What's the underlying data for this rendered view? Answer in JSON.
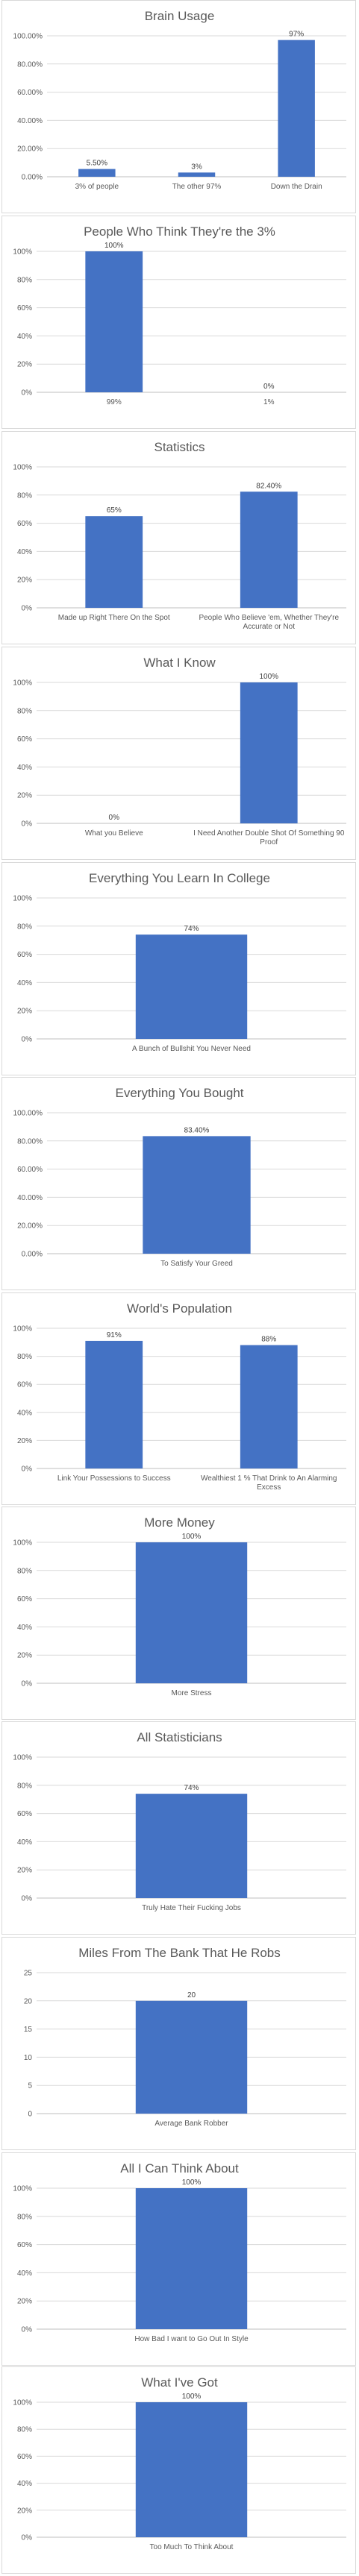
{
  "chart_data": [
    {
      "type": "bar",
      "title": "Brain Usage",
      "categories": [
        "3% of people",
        "The other 97%",
        "Down the Drain"
      ],
      "values": [
        5.5,
        3,
        97
      ],
      "data_labels": [
        "5.50%",
        "3%",
        "97%"
      ],
      "ylim": [
        0,
        100
      ],
      "yticks": [
        "0.00%",
        "20.00%",
        "40.00%",
        "60.00%",
        "80.00%",
        "100.00%"
      ],
      "grid": true,
      "legend": "none"
    },
    {
      "type": "bar",
      "title": "People Who Think They're the 3%",
      "categories": [
        "99%",
        "1%"
      ],
      "values": [
        100,
        0
      ],
      "data_labels": [
        "100%",
        "0%"
      ],
      "ylim": [
        0,
        100
      ],
      "yticks": [
        "0%",
        "20%",
        "40%",
        "60%",
        "80%",
        "100%"
      ],
      "grid": true,
      "legend": "none"
    },
    {
      "type": "bar",
      "title": "Statistics",
      "categories": [
        "Made up Right There On the Spot",
        "People Who Believe 'em, Whether They're Accurate or Not"
      ],
      "values": [
        65,
        82.4
      ],
      "data_labels": [
        "65%",
        "82.40%"
      ],
      "ylim": [
        0,
        100
      ],
      "yticks": [
        "0%",
        "20%",
        "40%",
        "60%",
        "80%",
        "100%"
      ],
      "grid": true,
      "legend": "none"
    },
    {
      "type": "bar",
      "title": "What I Know",
      "categories": [
        "What you Believe",
        "I Need Another Double Shot Of Something 90 Proof"
      ],
      "values": [
        0,
        100
      ],
      "data_labels": [
        "0%",
        "100%"
      ],
      "ylim": [
        0,
        100
      ],
      "yticks": [
        "0%",
        "20%",
        "40%",
        "60%",
        "80%",
        "100%"
      ],
      "grid": true,
      "legend": "none"
    },
    {
      "type": "bar",
      "title": "Everything You Learn In College",
      "categories": [
        "A Bunch of Bullshit You Never Need"
      ],
      "values": [
        74
      ],
      "data_labels": [
        "74%"
      ],
      "ylim": [
        0,
        100
      ],
      "yticks": [
        "0%",
        "20%",
        "40%",
        "60%",
        "80%",
        "100%"
      ],
      "grid": true,
      "legend": "none"
    },
    {
      "type": "bar",
      "title": "Everything You Bought",
      "categories": [
        "To Satisfy Your Greed"
      ],
      "values": [
        83.4
      ],
      "data_labels": [
        "83.40%"
      ],
      "ylim": [
        0,
        100
      ],
      "yticks": [
        "0.00%",
        "20.00%",
        "40.00%",
        "60.00%",
        "80.00%",
        "100.00%"
      ],
      "grid": true,
      "legend": "none"
    },
    {
      "type": "bar",
      "title": "World's Population",
      "categories": [
        "Link Your Possessions to Success",
        "Wealthiest 1 % That Drink to An Alarming Excess"
      ],
      "values": [
        91,
        88
      ],
      "data_labels": [
        "91%",
        "88%"
      ],
      "ylim": [
        0,
        100
      ],
      "yticks": [
        "0%",
        "20%",
        "40%",
        "60%",
        "80%",
        "100%"
      ],
      "grid": true,
      "legend": "none"
    },
    {
      "type": "bar",
      "title": "More Money",
      "categories": [
        "More Stress"
      ],
      "values": [
        100
      ],
      "data_labels": [
        "100%"
      ],
      "ylim": [
        0,
        100
      ],
      "yticks": [
        "0%",
        "20%",
        "40%",
        "60%",
        "80%",
        "100%"
      ],
      "grid": true,
      "legend": "none"
    },
    {
      "type": "bar",
      "title": "All Statisticians",
      "categories": [
        "Truly Hate Their Fucking Jobs"
      ],
      "values": [
        74
      ],
      "data_labels": [
        "74%"
      ],
      "ylim": [
        0,
        100
      ],
      "yticks": [
        "0%",
        "20%",
        "40%",
        "60%",
        "80%",
        "100%"
      ],
      "grid": true,
      "legend": "none"
    },
    {
      "type": "bar",
      "title": "Miles From The Bank That He Robs",
      "categories": [
        "Average Bank Robber"
      ],
      "values": [
        20
      ],
      "data_labels": [
        "20"
      ],
      "ylim": [
        0,
        25
      ],
      "yticks": [
        "0",
        "5",
        "10",
        "15",
        "20",
        "25"
      ],
      "grid": true,
      "legend": "none"
    },
    {
      "type": "bar",
      "title": "All I Can Think About",
      "categories": [
        "How Bad I want to Go Out In Style"
      ],
      "values": [
        100
      ],
      "data_labels": [
        "100%"
      ],
      "ylim": [
        0,
        100
      ],
      "yticks": [
        "0%",
        "20%",
        "40%",
        "60%",
        "80%",
        "100%"
      ],
      "grid": true,
      "legend": "none"
    },
    {
      "type": "bar",
      "title": "What I've Got",
      "categories": [
        "Too Much To Think About"
      ],
      "values": [
        100
      ],
      "data_labels": [
        "100%"
      ],
      "ylim": [
        0,
        100
      ],
      "yticks": [
        "0%",
        "20%",
        "40%",
        "60%",
        "80%",
        "100%"
      ],
      "grid": true,
      "legend": "none"
    }
  ]
}
